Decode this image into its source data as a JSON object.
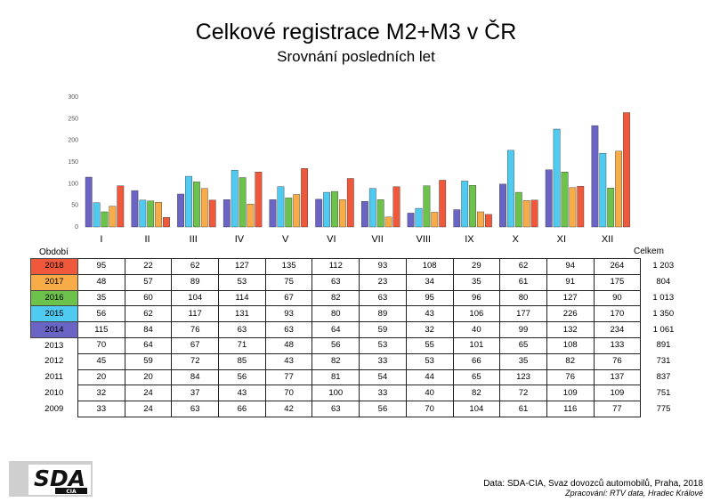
{
  "title": "Celkové registrace M2+M3 v ČR",
  "subtitle": "Srovnání posledních let",
  "colors": {
    "2018": "#f0583c",
    "2017": "#f8ac48",
    "2016": "#6cc24a",
    "2015": "#4fcbf1",
    "2014": "#6a64c4"
  },
  "chart_data": {
    "type": "bar",
    "title": "Celkové registrace M2+M3 v ČR",
    "subtitle": "Srovnání posledních let",
    "categories": [
      "I",
      "II",
      "III",
      "IV",
      "V",
      "VI",
      "VII",
      "VIII",
      "IX",
      "X",
      "XI",
      "XII"
    ],
    "yticks": [
      0,
      50,
      100,
      150,
      200,
      250,
      300
    ],
    "ylim": [
      0,
      300
    ],
    "grid": false,
    "legend": "table-left",
    "series": [
      {
        "name": "2014",
        "values": [
          115,
          84,
          76,
          63,
          63,
          64,
          59,
          32,
          40,
          99,
          132,
          234
        ]
      },
      {
        "name": "2015",
        "values": [
          56,
          62,
          117,
          131,
          93,
          80,
          89,
          43,
          106,
          177,
          226,
          170
        ]
      },
      {
        "name": "2016",
        "values": [
          35,
          60,
          104,
          114,
          67,
          82,
          63,
          95,
          96,
          80,
          127,
          90
        ]
      },
      {
        "name": "2017",
        "values": [
          48,
          57,
          89,
          53,
          75,
          63,
          23,
          34,
          35,
          61,
          91,
          175
        ]
      },
      {
        "name": "2018",
        "values": [
          95,
          22,
          62,
          127,
          135,
          112,
          93,
          108,
          29,
          62,
          94,
          264
        ]
      }
    ]
  },
  "table": {
    "header_period": "Období",
    "header_total": "Celkem",
    "rows": [
      {
        "year": "2018",
        "colored": true,
        "values": [
          "95",
          "22",
          "62",
          "127",
          "135",
          "112",
          "93",
          "108",
          "29",
          "62",
          "94",
          "264"
        ],
        "total": "1 203"
      },
      {
        "year": "2017",
        "colored": true,
        "values": [
          "48",
          "57",
          "89",
          "53",
          "75",
          "63",
          "23",
          "34",
          "35",
          "61",
          "91",
          "175"
        ],
        "total": "804"
      },
      {
        "year": "2016",
        "colored": true,
        "values": [
          "35",
          "60",
          "104",
          "114",
          "67",
          "82",
          "63",
          "95",
          "96",
          "80",
          "127",
          "90"
        ],
        "total": "1 013"
      },
      {
        "year": "2015",
        "colored": true,
        "values": [
          "56",
          "62",
          "117",
          "131",
          "93",
          "80",
          "89",
          "43",
          "106",
          "177",
          "226",
          "170"
        ],
        "total": "1 350"
      },
      {
        "year": "2014",
        "colored": true,
        "values": [
          "115",
          "84",
          "76",
          "63",
          "63",
          "64",
          "59",
          "32",
          "40",
          "99",
          "132",
          "234"
        ],
        "total": "1 061"
      },
      {
        "year": "2013",
        "colored": false,
        "values": [
          "70",
          "64",
          "67",
          "71",
          "48",
          "56",
          "53",
          "55",
          "101",
          "65",
          "108",
          "133"
        ],
        "total": "891"
      },
      {
        "year": "2012",
        "colored": false,
        "values": [
          "45",
          "59",
          "72",
          "85",
          "43",
          "82",
          "33",
          "53",
          "66",
          "35",
          "82",
          "76"
        ],
        "total": "731"
      },
      {
        "year": "2011",
        "colored": false,
        "values": [
          "20",
          "20",
          "84",
          "56",
          "77",
          "81",
          "54",
          "44",
          "65",
          "123",
          "76",
          "137"
        ],
        "total": "837"
      },
      {
        "year": "2010",
        "colored": false,
        "values": [
          "32",
          "24",
          "37",
          "43",
          "70",
          "100",
          "33",
          "40",
          "82",
          "72",
          "109",
          "109"
        ],
        "total": "751"
      },
      {
        "year": "2009",
        "colored": false,
        "values": [
          "33",
          "24",
          "63",
          "66",
          "42",
          "63",
          "56",
          "70",
          "104",
          "61",
          "116",
          "77"
        ],
        "total": "775"
      }
    ]
  },
  "logo": {
    "main": "SDA",
    "sub": "CIA"
  },
  "source": {
    "line1": "Data: SDA-CIA, Svaz dovozců automobilů, Praha, 2018",
    "line2": "Zpracování: RTV data, Hradec Králové"
  }
}
